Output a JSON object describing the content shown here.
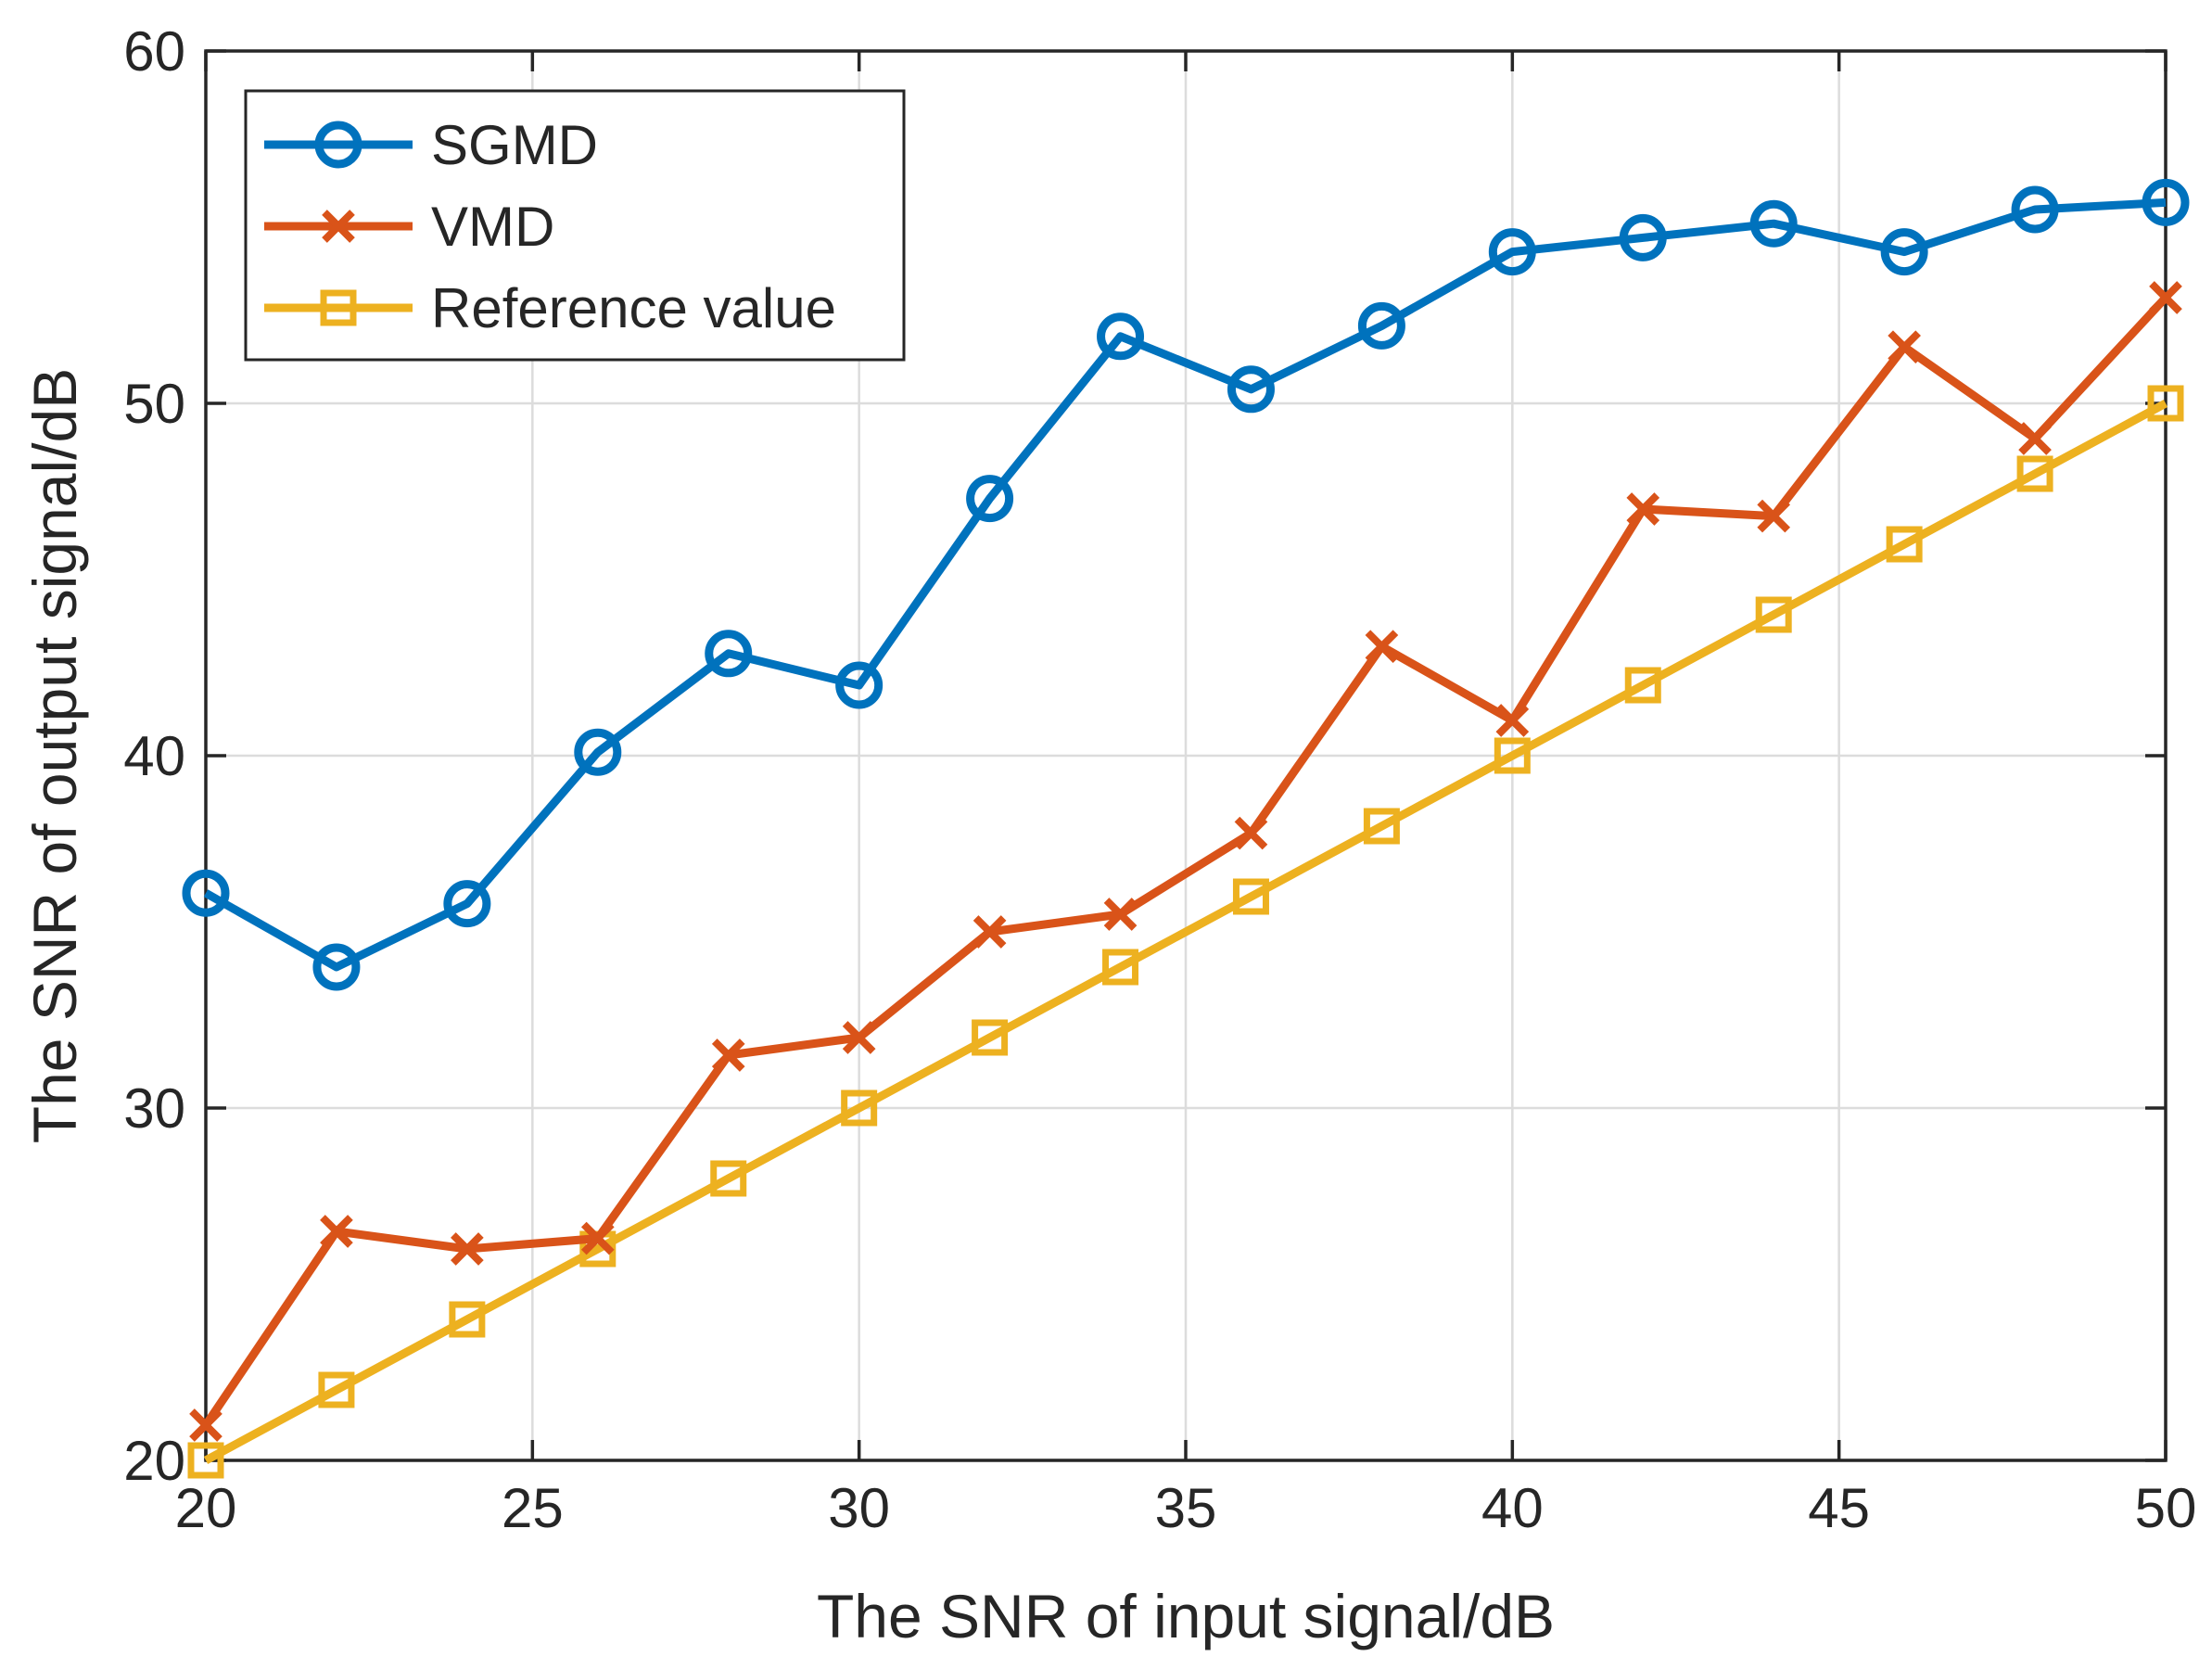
{
  "chart_data": {
    "type": "line",
    "title": "",
    "xlabel": "The SNR of input signal/dB",
    "ylabel": "The SNR of output signal/dB",
    "xlim": [
      20,
      50
    ],
    "ylim": [
      20,
      60
    ],
    "xticks": [
      20,
      25,
      30,
      35,
      40,
      45,
      50
    ],
    "yticks": [
      20,
      30,
      40,
      50,
      60
    ],
    "grid": true,
    "legend_position": "top-left",
    "x": [
      20,
      22,
      24,
      26,
      28,
      30,
      32,
      34,
      36,
      38,
      40,
      42,
      44,
      46,
      48,
      50
    ],
    "series": [
      {
        "name": "SGMD",
        "color": "#0072BD",
        "marker": "circle",
        "values": [
          36.1,
          34.0,
          35.8,
          40.1,
          42.9,
          42.0,
          47.3,
          51.9,
          50.4,
          52.2,
          54.3,
          54.7,
          55.1,
          54.3,
          55.5,
          55.7
        ]
      },
      {
        "name": "VMD",
        "color": "#D95319",
        "marker": "x",
        "values": [
          21.0,
          26.5,
          26.0,
          26.3,
          31.5,
          32.0,
          35.0,
          35.5,
          37.8,
          43.1,
          41.0,
          47.0,
          46.8,
          51.6,
          49.0,
          53.0
        ]
      },
      {
        "name": "Reference value",
        "color": "#EDB120",
        "marker": "square",
        "values": [
          20,
          22,
          24,
          26,
          28,
          30,
          32,
          34,
          36,
          38,
          40,
          42,
          44,
          46,
          48,
          50
        ]
      }
    ]
  }
}
